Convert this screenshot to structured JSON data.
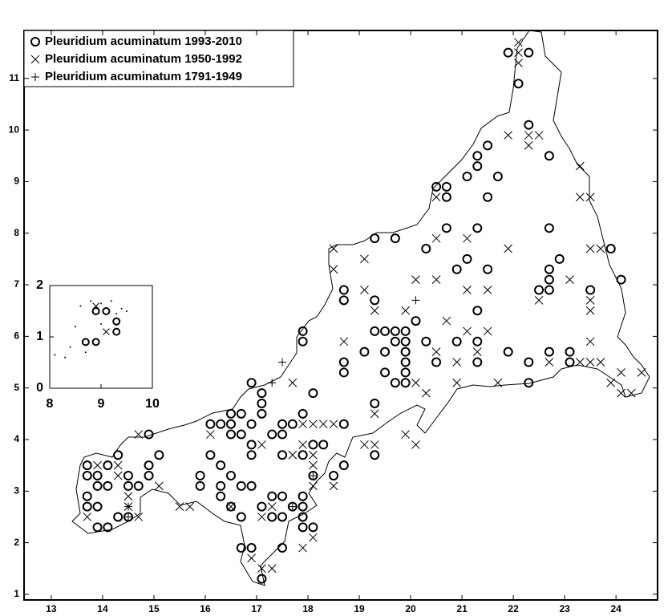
{
  "chart_data": [
    {
      "type": "scatter",
      "legend": "top-left",
      "xlim": [
        12.47,
        24.81
      ],
      "ylim": [
        0.89,
        11.93
      ],
      "xticks": [
        13,
        14,
        15,
        16,
        17,
        18,
        19,
        20,
        21,
        22,
        23,
        24
      ],
      "yticks": [
        1,
        2,
        3,
        4,
        5,
        6,
        7,
        8,
        9,
        10,
        11
      ],
      "series": [
        {
          "name": "Pleuridium acuminatum 1993-2010",
          "marker": "circle",
          "color": "#000000",
          "x": [
            21.9,
            22.3,
            22.1,
            22.3,
            22.7,
            21.5,
            21.3,
            21.3,
            21.7,
            21.1,
            20.5,
            20.7,
            20.7,
            21.5,
            20.7,
            21.3,
            22.7,
            19.3,
            19.7,
            20.3,
            21.1,
            22.9,
            20.9,
            21.5,
            22.7,
            22.7,
            24.1,
            23.9,
            22.5,
            22.7,
            23.5,
            18.7,
            18.7,
            19.3,
            21.3,
            20.1,
            17.9,
            19.3,
            19.5,
            19.7,
            19.9,
            17.9,
            20.3,
            20.9,
            21.3,
            19.7,
            19.9,
            19.1,
            19.5,
            19.9,
            21.9,
            22.7,
            23.1,
            18.7,
            20.5,
            21.3,
            22.3,
            23.1,
            19.9,
            18.7,
            19.5,
            19.9,
            16.9,
            19.7,
            19.9,
            22.3,
            17.1,
            18.1,
            17.1,
            19.3,
            16.7,
            17.1,
            17.9,
            16.5,
            16.1,
            16.3,
            16.5,
            16.9,
            17.5,
            17.7,
            18.7,
            14.9,
            16.5,
            16.7,
            17.3,
            17.5,
            16.9,
            18.1,
            18.3,
            15.1,
            16.1,
            16.9,
            17.5,
            17.9,
            19.3,
            14.3,
            13.7,
            14.1,
            14.9,
            16.3,
            18.7,
            13.7,
            13.9,
            14.5,
            14.9,
            15.9,
            16.5,
            18.1,
            18.5,
            13.9,
            14.1,
            14.5,
            14.7,
            15.9,
            16.3,
            16.7,
            16.9,
            13.7,
            16.3,
            17.3,
            17.5,
            17.9,
            13.7,
            13.9,
            16.5,
            17.1,
            17.7,
            17.9,
            14.3,
            14.5,
            16.7,
            17.3,
            17.5,
            17.9,
            13.9,
            14.1,
            17.9,
            18.1,
            16.7,
            16.9,
            17.5,
            17.1
          ],
          "values": [
            11.5,
            11.5,
            10.9,
            10.1,
            9.5,
            9.7,
            9.5,
            9.3,
            9.1,
            9.1,
            8.9,
            8.9,
            8.7,
            8.7,
            8.1,
            8.1,
            8.1,
            7.9,
            7.9,
            7.7,
            7.5,
            7.5,
            7.3,
            7.3,
            7.3,
            7.1,
            7.1,
            7.7,
            6.9,
            6.9,
            6.9,
            6.9,
            6.7,
            6.7,
            6.5,
            6.3,
            6.1,
            6.1,
            6.1,
            6.1,
            6.1,
            5.9,
            5.9,
            5.9,
            5.9,
            5.9,
            5.9,
            5.7,
            5.7,
            5.7,
            5.7,
            5.7,
            5.7,
            5.5,
            5.5,
            5.5,
            5.5,
            5.5,
            5.5,
            5.3,
            5.3,
            5.3,
            5.1,
            5.1,
            5.1,
            5.1,
            4.9,
            4.9,
            4.7,
            4.7,
            4.5,
            4.5,
            4.5,
            4.5,
            4.3,
            4.3,
            4.3,
            4.3,
            4.3,
            4.3,
            4.3,
            4.1,
            4.1,
            4.1,
            4.1,
            4.1,
            3.9,
            3.9,
            3.9,
            3.7,
            3.7,
            3.7,
            3.7,
            3.7,
            3.7,
            3.7,
            3.5,
            3.5,
            3.5,
            3.5,
            3.5,
            3.3,
            3.3,
            3.3,
            3.3,
            3.3,
            3.3,
            3.3,
            3.3,
            3.1,
            3.1,
            3.1,
            3.1,
            3.1,
            3.1,
            3.1,
            3.1,
            2.9,
            2.9,
            2.9,
            2.9,
            2.9,
            2.7,
            2.7,
            2.7,
            2.7,
            2.7,
            2.7,
            2.5,
            2.5,
            2.5,
            2.5,
            2.5,
            2.5,
            2.3,
            2.3,
            2.3,
            2.3,
            1.9,
            1.9,
            1.9,
            1.3
          ]
        },
        {
          "name": "Pleuridium acuminatum 1950-1992",
          "marker": "cross",
          "color": "#000000",
          "x": [
            22.1,
            22.1,
            22.1,
            21.9,
            22.3,
            22.3,
            22.5,
            23.3,
            23.3,
            23.5,
            20.5,
            20.5,
            21.1,
            21.9,
            23.5,
            23.7,
            18.5,
            19.1,
            18.5,
            20.1,
            20.5,
            23.1,
            19.1,
            21.1,
            21.5,
            22.5,
            23.5,
            23.5,
            19.9,
            19.3,
            20.7,
            21.1,
            21.5,
            18.7,
            23.5,
            21.3,
            20.5,
            20.9,
            22.7,
            23.3,
            23.5,
            23.7,
            24.1,
            24.5,
            23.9,
            20.9,
            21.7,
            20.1,
            17.7,
            24.1,
            24.3,
            20.3,
            19.3,
            18.3,
            17.9,
            18.1,
            18.5,
            14.7,
            16.1,
            19.9,
            17.1,
            17.9,
            19.1,
            19.3,
            20.1,
            17.7,
            18.1,
            13.9,
            14.3,
            18.1,
            14.3,
            18.1,
            18.5,
            15.1,
            14.5,
            17.3,
            15.5,
            15.7,
            16.5,
            13.7,
            14.7,
            17.1,
            17.9,
            18.1,
            16.9,
            17.1,
            17.3,
            14.5
          ],
          "values": [
            11.7,
            11.5,
            11.3,
            9.9,
            9.9,
            9.7,
            9.9,
            9.3,
            8.7,
            8.7,
            8.7,
            7.9,
            7.9,
            7.7,
            7.7,
            7.7,
            7.7,
            7.5,
            7.3,
            7.1,
            7.1,
            7.1,
            6.9,
            6.9,
            6.9,
            6.7,
            6.7,
            6.5,
            6.5,
            6.5,
            6.3,
            6.1,
            6.1,
            5.9,
            5.9,
            5.7,
            5.7,
            5.5,
            5.5,
            5.5,
            5.5,
            5.5,
            5.3,
            5.3,
            5.1,
            5.1,
            5.1,
            5.1,
            5.1,
            4.9,
            4.9,
            4.9,
            4.5,
            4.3,
            4.3,
            4.3,
            4.3,
            4.1,
            4.1,
            4.1,
            3.9,
            3.9,
            3.9,
            3.9,
            3.9,
            3.7,
            3.7,
            3.5,
            3.5,
            3.5,
            3.3,
            3.1,
            3.1,
            3.1,
            2.9,
            2.7,
            2.7,
            2.7,
            2.7,
            2.5,
            2.5,
            2.5,
            1.9,
            2.1,
            1.7,
            1.5,
            1.5,
            2.7
          ]
        },
        {
          "name": "Pleuridium acuminatum 1791-1949",
          "marker": "plus",
          "color": "#000000",
          "x": [
            20.1,
            17.3,
            17.5,
            14.5,
            14.5,
            18.1,
            17.7
          ],
          "values": [
            6.7,
            5.1,
            5.5,
            2.7,
            2.5,
            3.3,
            2.7
          ]
        }
      ]
    },
    {
      "type": "scatter",
      "xlim": [
        8,
        10
      ],
      "ylim": [
        0,
        2
      ],
      "xticks": [
        8,
        9,
        10
      ],
      "yticks": [
        0,
        1,
        2
      ],
      "series": [
        {
          "marker": "circle",
          "color": "#000000",
          "x": [
            8.7,
            8.9,
            8.9,
            9.1,
            9.3,
            9.3
          ],
          "values": [
            0.9,
            0.9,
            1.5,
            1.5,
            1.3,
            1.1
          ]
        },
        {
          "marker": "cross",
          "color": "#000000",
          "x": [
            9.1,
            8.9
          ],
          "values": [
            1.1,
            1.6
          ]
        },
        {
          "marker": "dot",
          "color": "#000000",
          "x": [
            8.6,
            8.8,
            9.0,
            9.2,
            9.4,
            8.5,
            8.7,
            9.3,
            9.0,
            9.5,
            8.1,
            8.3,
            8.4
          ],
          "values": [
            1.6,
            1.7,
            1.65,
            1.7,
            1.55,
            1.2,
            0.7,
            1.45,
            1.25,
            1.5,
            0.65,
            0.6,
            0.8
          ]
        }
      ]
    }
  ]
}
